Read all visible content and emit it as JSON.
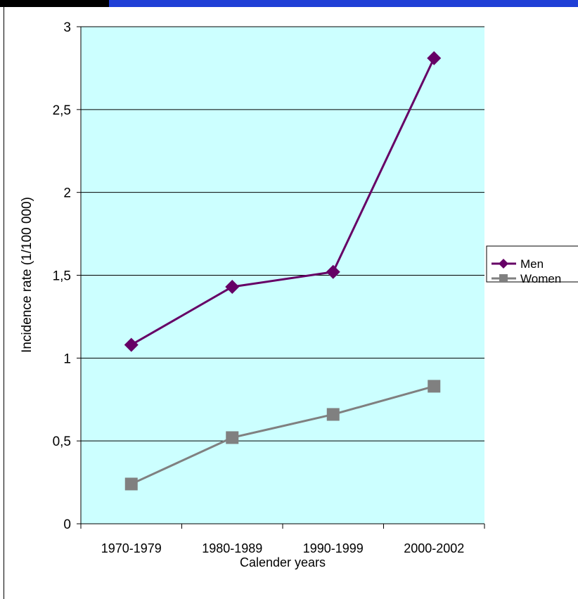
{
  "chart_data": {
    "type": "line",
    "xlabel": "Calender years",
    "ylabel": "Incidence rate (1/100 000)",
    "categories": [
      "1970-1979",
      "1980-1989",
      "1990-1999",
      "2000-2002"
    ],
    "ylim": [
      0,
      3
    ],
    "yticks": [
      0,
      0.5,
      1,
      1.5,
      2,
      2.5,
      3
    ],
    "ytick_labels": [
      "0",
      "0,5",
      "1",
      "1,5",
      "2",
      "2,5",
      "3"
    ],
    "grid": true,
    "legend_position": "right",
    "plot_background": "#ccffff",
    "series": [
      {
        "name": "Men",
        "values": [
          1.08,
          1.43,
          1.52,
          2.81
        ],
        "color": "#660066",
        "marker": "diamond"
      },
      {
        "name": "Women",
        "values": [
          0.24,
          0.52,
          0.66,
          0.83
        ],
        "color": "#808080",
        "marker": "square"
      }
    ]
  }
}
